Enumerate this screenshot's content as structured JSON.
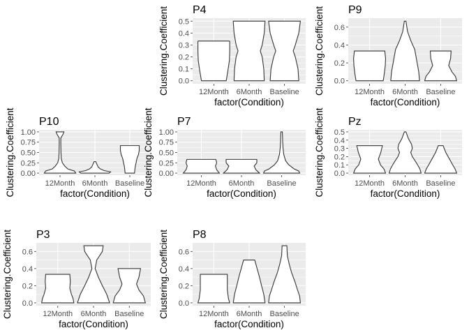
{
  "chart_data": [
    {
      "type": "violin",
      "title": "P4",
      "xlabel": "factor(Condition)",
      "ylabel": "Clustering.Coefficient",
      "categories": [
        "12Month",
        "6Month",
        "Baseline"
      ],
      "ylim": [
        0,
        0.5
      ],
      "yticks": [
        0.0,
        0.1,
        0.2,
        0.3,
        0.4,
        0.5
      ],
      "ytick_labels": [
        "0.0",
        "0.1",
        "0.2",
        "0.3",
        "0.4",
        "0.5"
      ],
      "violins": [
        {
          "category": "12Month",
          "profile": [
            [
              0,
              0.78
            ],
            [
              0.08,
              0.88
            ],
            [
              0.17,
              0.98
            ],
            [
              0.25,
              1
            ],
            [
              0.33,
              1
            ],
            [
              0.333,
              0.98
            ]
          ]
        },
        {
          "category": "6Month",
          "profile": [
            [
              0,
              0.95
            ],
            [
              0.1,
              0.92
            ],
            [
              0.2,
              0.82
            ],
            [
              0.25,
              0.7
            ],
            [
              0.3,
              0.82
            ],
            [
              0.4,
              0.95
            ],
            [
              0.5,
              1
            ]
          ]
        },
        {
          "category": "Baseline",
          "profile": [
            [
              0,
              0.9
            ],
            [
              0.1,
              0.85
            ],
            [
              0.2,
              0.68
            ],
            [
              0.25,
              0.55
            ],
            [
              0.3,
              0.68
            ],
            [
              0.4,
              0.9
            ],
            [
              0.5,
              1
            ]
          ]
        }
      ]
    },
    {
      "type": "violin",
      "title": "P9",
      "xlabel": "factor(Condition)",
      "ylabel": "Clustering.Coefficient",
      "categories": [
        "12Month",
        "6Month",
        "Baseline"
      ],
      "ylim": [
        0,
        0.667
      ],
      "yticks": [
        0.0,
        0.2,
        0.4,
        0.6
      ],
      "ytick_labels": [
        "0.0",
        "0.2",
        "0.4",
        "0.6"
      ],
      "violins": [
        {
          "category": "12Month",
          "profile": [
            [
              0,
              0.85
            ],
            [
              0.08,
              0.92
            ],
            [
              0.17,
              0.98
            ],
            [
              0.25,
              1
            ],
            [
              0.333,
              0.95
            ]
          ]
        },
        {
          "category": "6Month",
          "profile": [
            [
              0,
              0.9
            ],
            [
              0.1,
              0.85
            ],
            [
              0.2,
              0.75
            ],
            [
              0.35,
              0.6
            ],
            [
              0.45,
              0.35
            ],
            [
              0.55,
              0.15
            ],
            [
              0.667,
              0.05
            ]
          ]
        },
        {
          "category": "Baseline",
          "profile": [
            [
              0,
              1
            ],
            [
              0.05,
              0.92
            ],
            [
              0.1,
              0.7
            ],
            [
              0.17,
              0.5
            ],
            [
              0.25,
              0.62
            ],
            [
              0.333,
              0.65
            ]
          ]
        }
      ]
    },
    {
      "type": "violin",
      "title": "P10",
      "xlabel": "factor(Condition)",
      "ylabel": "Clustering.Coefficient",
      "categories": [
        "12Month",
        "6Month",
        "Baseline"
      ],
      "ylim": [
        0,
        1
      ],
      "yticks": [
        0.0,
        0.25,
        0.5,
        0.75,
        1.0
      ],
      "ytick_labels": [
        "0.00",
        "0.25",
        "0.50",
        "0.75",
        "1.00"
      ],
      "violins": [
        {
          "category": "12Month",
          "profile": [
            [
              0,
              1
            ],
            [
              0.05,
              0.92
            ],
            [
              0.1,
              0.5
            ],
            [
              0.17,
              0.3
            ],
            [
              0.25,
              0.15
            ],
            [
              0.35,
              0.08
            ],
            [
              0.5,
              0.06
            ],
            [
              0.7,
              0.05
            ],
            [
              0.85,
              0.05
            ],
            [
              0.95,
              0.2
            ],
            [
              1,
              0.25
            ]
          ]
        },
        {
          "category": "6Month",
          "profile": [
            [
              0,
              0.9
            ],
            [
              0.03,
              1
            ],
            [
              0.06,
              0.6
            ],
            [
              0.1,
              0.35
            ],
            [
              0.15,
              0.2
            ],
            [
              0.22,
              0.12
            ],
            [
              0.28,
              0.05
            ]
          ]
        },
        {
          "category": "Baseline",
          "profile": [
            [
              0,
              0.3
            ],
            [
              0.08,
              0.32
            ],
            [
              0.17,
              0.35
            ],
            [
              0.25,
              0.4
            ],
            [
              0.35,
              0.45
            ],
            [
              0.45,
              0.55
            ],
            [
              0.55,
              0.6
            ],
            [
              0.667,
              0.6
            ]
          ]
        }
      ]
    },
    {
      "type": "violin",
      "title": "P7",
      "xlabel": "factor(Condition)",
      "ylabel": "Clustering.Coefficient",
      "categories": [
        "12Month",
        "6Month",
        "Baseline"
      ],
      "ylim": [
        0,
        1
      ],
      "yticks": [
        0.0,
        0.25,
        0.5,
        0.75,
        1.0
      ],
      "ytick_labels": [
        "0.00",
        "0.25",
        "0.50",
        "0.75",
        "1.00"
      ],
      "violins": [
        {
          "category": "12Month",
          "profile": [
            [
              0,
              1
            ],
            [
              0.08,
              0.85
            ],
            [
              0.17,
              0.78
            ],
            [
              0.25,
              0.85
            ],
            [
              0.333,
              0.8
            ]
          ]
        },
        {
          "category": "6Month",
          "profile": [
            [
              0,
              1
            ],
            [
              0.08,
              0.8
            ],
            [
              0.17,
              0.7
            ],
            [
              0.25,
              0.85
            ],
            [
              0.333,
              0.85
            ]
          ]
        },
        {
          "category": "Baseline",
          "profile": [
            [
              0,
              1
            ],
            [
              0.05,
              0.95
            ],
            [
              0.1,
              0.7
            ],
            [
              0.2,
              0.4
            ],
            [
              0.3,
              0.22
            ],
            [
              0.45,
              0.12
            ],
            [
              0.6,
              0.08
            ],
            [
              0.75,
              0.06
            ],
            [
              0.9,
              0.05
            ],
            [
              1,
              0.04
            ]
          ]
        }
      ]
    },
    {
      "type": "violin",
      "title": "Pz",
      "xlabel": "factor(Condition)",
      "ylabel": "Clustering.Coefficient",
      "categories": [
        "12Month",
        "6Month",
        "Baseline"
      ],
      "ylim": [
        0,
        0.5
      ],
      "yticks": [
        0.0,
        0.1,
        0.2,
        0.3,
        0.4,
        0.5
      ],
      "ytick_labels": [
        "0.0",
        "0.1",
        "0.2",
        "0.3",
        "0.4",
        "0.5"
      ],
      "violins": [
        {
          "category": "12Month",
          "profile": [
            [
              0,
              1
            ],
            [
              0.05,
              0.9
            ],
            [
              0.1,
              0.68
            ],
            [
              0.17,
              0.55
            ],
            [
              0.25,
              0.7
            ],
            [
              0.333,
              0.8
            ]
          ]
        },
        {
          "category": "6Month",
          "profile": [
            [
              0,
              1
            ],
            [
              0.05,
              0.92
            ],
            [
              0.1,
              0.78
            ],
            [
              0.15,
              0.62
            ],
            [
              0.2,
              0.45
            ],
            [
              0.25,
              0.35
            ],
            [
              0.3,
              0.45
            ],
            [
              0.35,
              0.4
            ],
            [
              0.42,
              0.2
            ],
            [
              0.5,
              0.05
            ]
          ]
        },
        {
          "category": "Baseline",
          "profile": [
            [
              0,
              1
            ],
            [
              0.05,
              0.9
            ],
            [
              0.1,
              0.75
            ],
            [
              0.17,
              0.55
            ],
            [
              0.25,
              0.32
            ],
            [
              0.333,
              0.15
            ]
          ]
        }
      ]
    },
    {
      "type": "violin",
      "title": "P3",
      "xlabel": "factor(Condition)",
      "ylabel": "Clustering.Coefficient",
      "categories": [
        "12Month",
        "6Month",
        "Baseline"
      ],
      "ylim": [
        0,
        0.667
      ],
      "yticks": [
        0.0,
        0.2,
        0.4,
        0.6
      ],
      "ytick_labels": [
        "0.0",
        "0.2",
        "0.4",
        "0.6"
      ],
      "violins": [
        {
          "category": "12Month",
          "profile": [
            [
              0,
              1
            ],
            [
              0.05,
              0.95
            ],
            [
              0.1,
              0.85
            ],
            [
              0.17,
              0.75
            ],
            [
              0.25,
              0.78
            ],
            [
              0.333,
              0.75
            ]
          ]
        },
        {
          "category": "6Month",
          "profile": [
            [
              0,
              1
            ],
            [
              0.1,
              0.82
            ],
            [
              0.2,
              0.55
            ],
            [
              0.3,
              0.3
            ],
            [
              0.4,
              0.1
            ],
            [
              0.5,
              0.2
            ],
            [
              0.6,
              0.55
            ],
            [
              0.667,
              0.6
            ]
          ]
        },
        {
          "category": "Baseline",
          "profile": [
            [
              0,
              1
            ],
            [
              0.08,
              0.88
            ],
            [
              0.15,
              0.6
            ],
            [
              0.22,
              0.45
            ],
            [
              0.3,
              0.6
            ],
            [
              0.4,
              0.7
            ]
          ]
        }
      ]
    },
    {
      "type": "violin",
      "title": "P8",
      "xlabel": "factor(Condition)",
      "ylabel": "Clustering.Coefficient",
      "categories": [
        "12Month",
        "6Month",
        "Baseline"
      ],
      "ylim": [
        0,
        0.667
      ],
      "yticks": [
        0.0,
        0.2,
        0.4,
        0.6
      ],
      "ytick_labels": [
        "0.0",
        "0.2",
        "0.4",
        "0.6"
      ],
      "violins": [
        {
          "category": "12Month",
          "profile": [
            [
              0,
              1
            ],
            [
              0.05,
              0.92
            ],
            [
              0.15,
              0.85
            ],
            [
              0.25,
              0.85
            ],
            [
              0.333,
              0.85
            ]
          ]
        },
        {
          "category": "6Month",
          "profile": [
            [
              0,
              1
            ],
            [
              0.1,
              0.92
            ],
            [
              0.2,
              0.78
            ],
            [
              0.3,
              0.65
            ],
            [
              0.4,
              0.5
            ],
            [
              0.5,
              0.35
            ]
          ]
        },
        {
          "category": "Baseline",
          "profile": [
            [
              0,
              1
            ],
            [
              0.08,
              0.95
            ],
            [
              0.15,
              0.82
            ],
            [
              0.25,
              0.65
            ],
            [
              0.35,
              0.45
            ],
            [
              0.45,
              0.3
            ],
            [
              0.55,
              0.18
            ],
            [
              0.667,
              0.15
            ]
          ]
        }
      ]
    }
  ]
}
